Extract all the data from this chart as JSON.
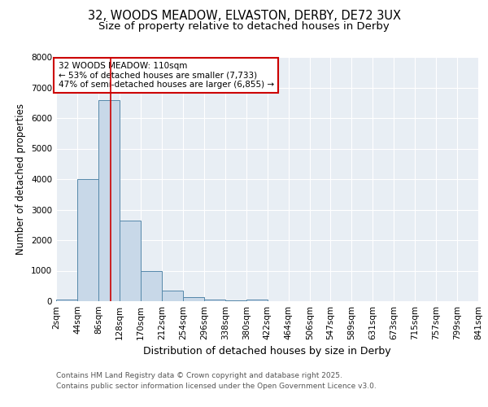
{
  "title_line1": "32, WOODS MEADOW, ELVASTON, DERBY, DE72 3UX",
  "title_line2": "Size of property relative to detached houses in Derby",
  "xlabel": "Distribution of detached houses by size in Derby",
  "ylabel": "Number of detached properties",
  "bin_edges": [
    2,
    44,
    86,
    128,
    170,
    212,
    254,
    296,
    338,
    380,
    422,
    464,
    506,
    547,
    589,
    631,
    673,
    715,
    757,
    799,
    841
  ],
  "bin_labels": [
    "2sqm",
    "44sqm",
    "86sqm",
    "128sqm",
    "170sqm",
    "212sqm",
    "254sqm",
    "296sqm",
    "338sqm",
    "380sqm",
    "422sqm",
    "464sqm",
    "506sqm",
    "547sqm",
    "589sqm",
    "631sqm",
    "673sqm",
    "715sqm",
    "757sqm",
    "799sqm",
    "841sqm"
  ],
  "bar_heights": [
    50,
    4000,
    6600,
    2650,
    975,
    340,
    140,
    60,
    40,
    50,
    0,
    0,
    0,
    0,
    0,
    0,
    0,
    0,
    0,
    0
  ],
  "bar_color": "#c8d8e8",
  "bar_edge_color": "#5588aa",
  "vline_x": 110,
  "vline_color": "#cc0000",
  "ylim": [
    0,
    8000
  ],
  "annotation_text": "32 WOODS MEADOW: 110sqm\n← 53% of detached houses are smaller (7,733)\n47% of semi-detached houses are larger (6,855) →",
  "annotation_box_color": "#cc0000",
  "footnote1": "Contains HM Land Registry data © Crown copyright and database right 2025.",
  "footnote2": "Contains public sector information licensed under the Open Government Licence v3.0.",
  "plot_bg_color": "#e8eef4",
  "fig_bg_color": "#ffffff",
  "grid_color": "#ffffff",
  "title_fontsize": 10.5,
  "subtitle_fontsize": 9.5,
  "ylabel_fontsize": 8.5,
  "xlabel_fontsize": 9,
  "tick_fontsize": 7.5,
  "annotation_fontsize": 7.5,
  "footnote_fontsize": 6.5
}
